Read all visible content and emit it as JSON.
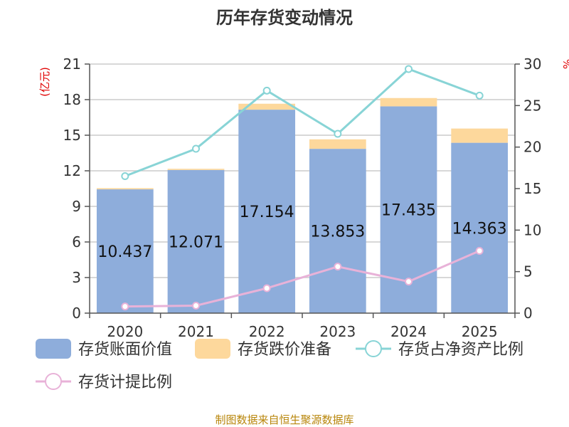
{
  "chart_data": {
    "type": "bar",
    "title": "历年存货变动情况",
    "categories": [
      "2020",
      "2021",
      "2022",
      "2023",
      "2024",
      "2025"
    ],
    "y_left": {
      "unit": "(亿元)",
      "ylim": [
        0,
        21
      ],
      "ticks": [
        0,
        3,
        6,
        9,
        12,
        15,
        18,
        21
      ]
    },
    "y_right": {
      "unit": "%",
      "ylim": [
        0,
        30
      ],
      "ticks": [
        0,
        5,
        10,
        15,
        20,
        25,
        30
      ]
    },
    "stacked": true,
    "series": [
      {
        "name": "存货账面价值",
        "type": "bar",
        "axis": "left",
        "color": "#8eaddb",
        "values": [
          10.437,
          12.071,
          17.154,
          13.853,
          17.435,
          14.363
        ],
        "labels": [
          "10.437",
          "12.071",
          "17.154",
          "13.853",
          "17.435",
          "14.363"
        ]
      },
      {
        "name": "存货跌价准备",
        "type": "bar",
        "axis": "left",
        "color": "#fdd89c",
        "values": [
          0.1,
          0.1,
          0.5,
          0.8,
          0.7,
          1.2
        ]
      },
      {
        "name": "存货占净资产比例",
        "type": "line",
        "axis": "right",
        "color": "#88d4d6",
        "values": [
          16.5,
          19.8,
          26.8,
          21.6,
          29.4,
          26.2
        ]
      },
      {
        "name": "存货计提比例",
        "type": "line",
        "axis": "right",
        "color": "#e8b2d8",
        "values": [
          0.8,
          0.9,
          3.0,
          5.6,
          3.8,
          7.5
        ]
      }
    ],
    "grid": true,
    "legend": "bottom"
  },
  "source": "制图数据来自恒生聚源数据库"
}
